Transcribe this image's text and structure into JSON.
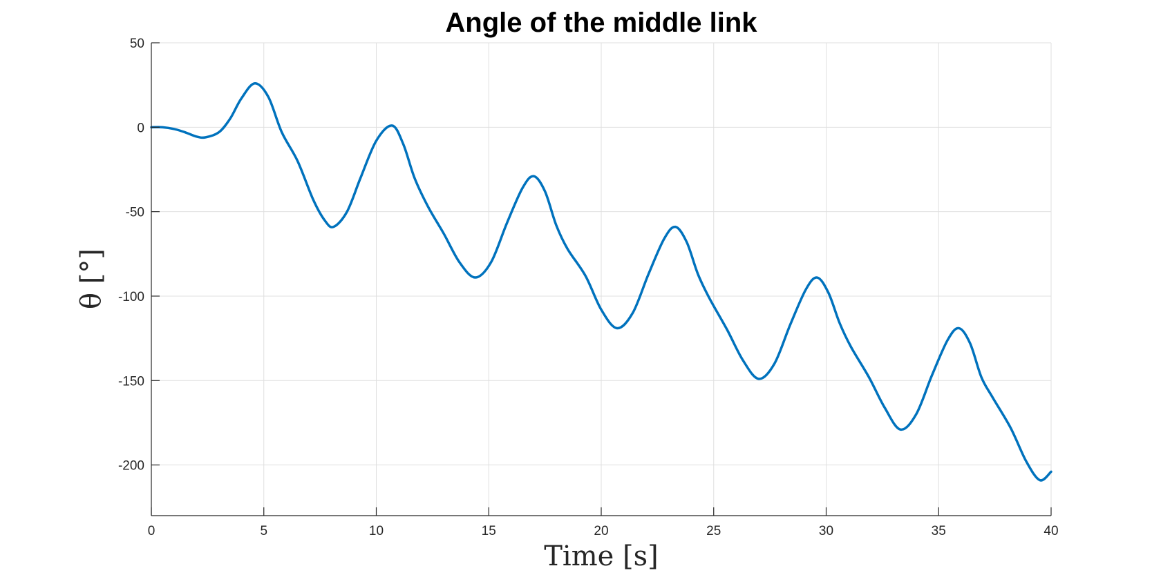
{
  "chart_data": {
    "type": "line",
    "title": "Angle of the middle link",
    "xlabel": "Time [s]",
    "ylabel": "θ [°]",
    "xlim": [
      0,
      40
    ],
    "ylim": [
      -230,
      50
    ],
    "xticks": [
      0,
      5,
      10,
      15,
      20,
      25,
      30,
      35,
      40
    ],
    "yticks": [
      50,
      0,
      -50,
      -100,
      -150,
      -200
    ],
    "xtick_labels": [
      "0",
      "5",
      "10",
      "15",
      "20",
      "25",
      "30",
      "35",
      "40"
    ],
    "ytick_labels": [
      "50",
      "0",
      "-50",
      "-100",
      "-150",
      "-200"
    ],
    "grid": true,
    "color": "#0072BD",
    "series": [
      {
        "x": [
          0,
          0.5,
          1.0,
          1.5,
          2.0,
          2.4,
          3.0,
          3.5,
          4.0,
          4.6,
          5.2,
          5.8,
          6.5,
          7.2,
          7.7,
          8.1,
          8.7,
          9.3,
          10.0,
          10.7,
          11.2,
          11.7,
          12.3,
          13.0,
          13.7,
          14.4,
          15.1,
          15.8,
          16.5,
          17.0,
          17.5,
          18.0,
          18.5,
          19.3,
          20.0,
          20.7,
          21.4,
          22.1,
          22.8,
          23.3,
          23.8,
          24.3,
          24.8,
          25.6,
          26.3,
          27.0,
          27.7,
          28.4,
          29.1,
          29.6,
          30.1,
          30.6,
          31.1,
          31.9,
          32.6,
          33.3,
          34.0,
          34.7,
          35.4,
          35.9,
          36.4,
          36.9,
          37.4,
          38.2,
          38.9,
          39.5,
          40.0
        ],
        "y": [
          0,
          0,
          -1,
          -3,
          -5.5,
          -6,
          -3,
          5,
          17,
          26,
          18,
          -3,
          -20,
          -43,
          -55,
          -59,
          -50,
          -30,
          -8,
          1,
          -10,
          -30,
          -47,
          -63,
          -80,
          -89,
          -80,
          -57,
          -36,
          -29,
          -38,
          -58,
          -72,
          -88,
          -108,
          -119,
          -110,
          -87,
          -66,
          -59,
          -68,
          -87,
          -101,
          -120,
          -138,
          -149,
          -140,
          -117,
          -96,
          -89,
          -98,
          -116,
          -130,
          -148,
          -166,
          -179,
          -170,
          -147,
          -126,
          -119,
          -128,
          -148,
          -160,
          -178,
          -198,
          -209,
          -204
        ]
      }
    ]
  }
}
